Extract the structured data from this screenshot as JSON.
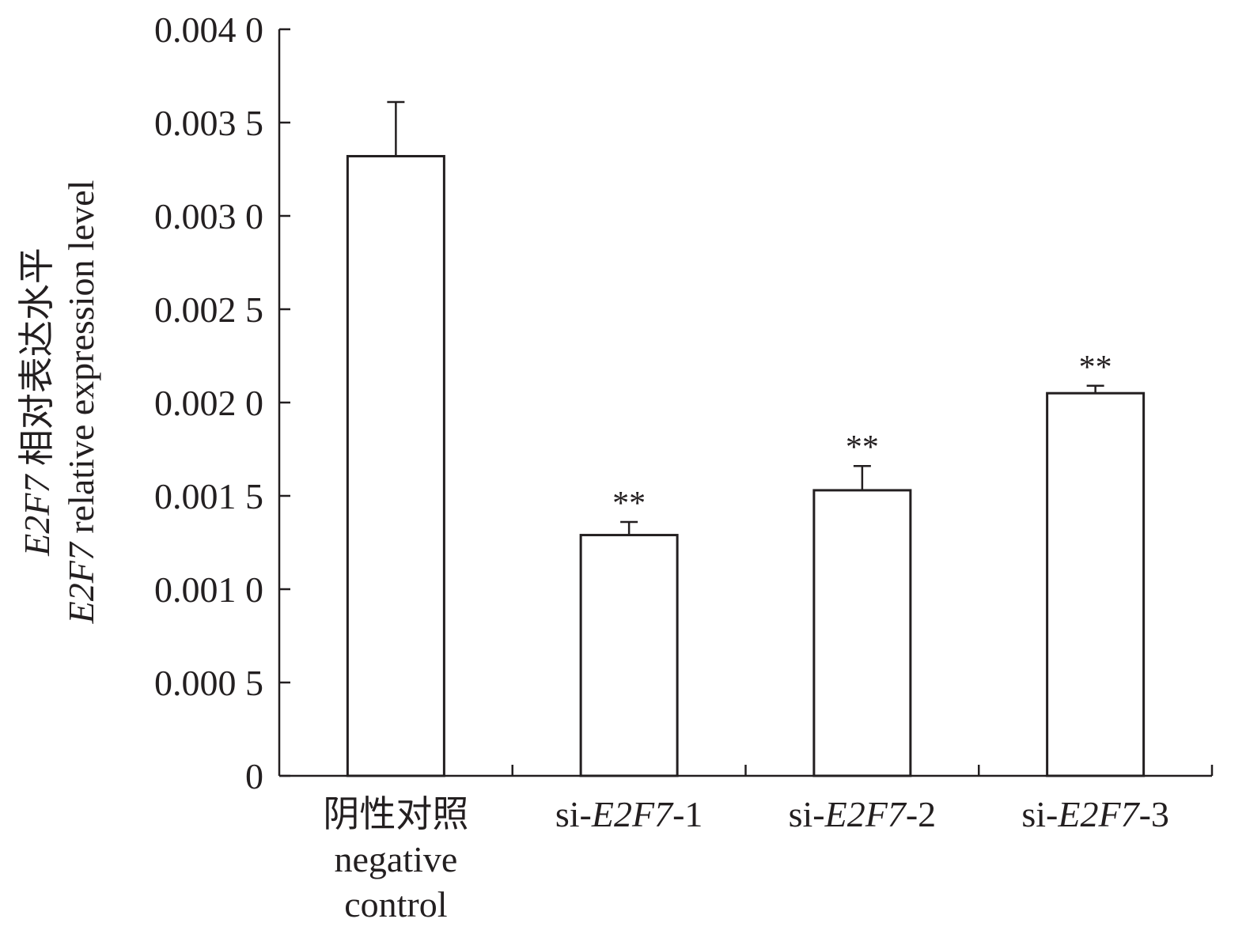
{
  "chart_data": {
    "type": "bar",
    "title": "",
    "ylabel": {
      "line1_gene": "E2F7",
      "line1_text": "相对表达水平",
      "line2_gene": "E2F7",
      "line2_text": "relative expression level"
    },
    "ylim": [
      0,
      0.004
    ],
    "yticks": [
      {
        "value": 0,
        "label": "0"
      },
      {
        "value": 0.0005,
        "label": "0.000 5"
      },
      {
        "value": 0.001,
        "label": "0.001 0"
      },
      {
        "value": 0.0015,
        "label": "0.001 5"
      },
      {
        "value": 0.002,
        "label": "0.002 0"
      },
      {
        "value": 0.0025,
        "label": "0.002 5"
      },
      {
        "value": 0.003,
        "label": "0.003 0"
      },
      {
        "value": 0.0035,
        "label": "0.003 5"
      },
      {
        "value": 0.004,
        "label": "0.004 0"
      }
    ],
    "categories": [
      {
        "lines": [
          [
            {
              "t": "阴性对照",
              "i": false
            }
          ],
          [
            {
              "t": "negative",
              "i": false
            }
          ],
          [
            {
              "t": "control",
              "i": false
            }
          ]
        ]
      },
      {
        "lines": [
          [
            {
              "t": "si-",
              "i": false
            },
            {
              "t": "E2F7",
              "i": true
            },
            {
              "t": "-1",
              "i": false
            }
          ]
        ]
      },
      {
        "lines": [
          [
            {
              "t": "si-",
              "i": false
            },
            {
              "t": "E2F7",
              "i": true
            },
            {
              "t": "-2",
              "i": false
            }
          ]
        ]
      },
      {
        "lines": [
          [
            {
              "t": "si-",
              "i": false
            },
            {
              "t": "E2F7",
              "i": true
            },
            {
              "t": "-3",
              "i": false
            }
          ]
        ]
      }
    ],
    "values": [
      0.00332,
      0.00129,
      0.00153,
      0.00205
    ],
    "errors": [
      0.00029,
      7e-05,
      0.00013,
      4e-05
    ],
    "significance": [
      "",
      "**",
      "**",
      "**"
    ]
  }
}
